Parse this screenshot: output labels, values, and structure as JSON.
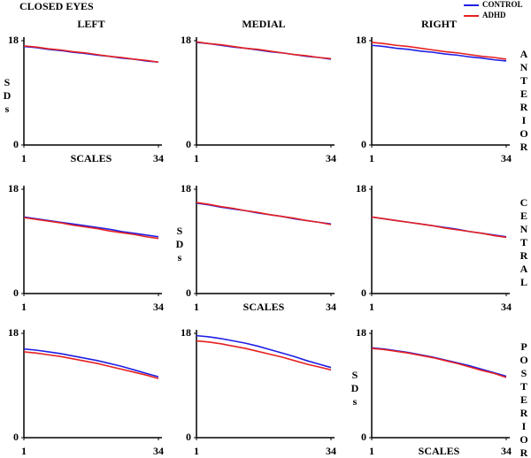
{
  "title": "CLOSED EYES",
  "chart_data": [
    {
      "type": "line",
      "title": "LEFT",
      "xlabel": "SCALES",
      "ylabel": "SDs",
      "x": [
        1,
        4,
        7,
        10,
        13,
        16,
        19,
        22,
        25,
        28,
        31,
        34
      ],
      "xlim": [
        1,
        34
      ],
      "ylim": [
        0,
        18
      ],
      "xticks": [
        1,
        34
      ],
      "yticks": [
        0,
        18
      ],
      "series": [
        {
          "name": "CONTROL",
          "color": "#1f1fe6",
          "values": [
            17.0,
            16.8,
            16.5,
            16.3,
            16.0,
            15.8,
            15.5,
            15.3,
            15.0,
            14.8,
            14.5,
            14.3
          ]
        },
        {
          "name": "ADHD",
          "color": "#e62020",
          "values": [
            17.1,
            16.9,
            16.6,
            16.4,
            16.1,
            15.9,
            15.6,
            15.3,
            15.1,
            14.8,
            14.6,
            14.3
          ]
        }
      ]
    },
    {
      "type": "line",
      "title": "MEDIAL",
      "x": [
        1,
        4,
        7,
        10,
        13,
        16,
        19,
        22,
        25,
        28,
        31,
        34
      ],
      "xlim": [
        1,
        34
      ],
      "ylim": [
        0,
        18
      ],
      "xticks": [
        1,
        34
      ],
      "yticks": [
        0,
        18
      ],
      "series": [
        {
          "color": "#1f1fe6",
          "values": [
            17.7,
            17.5,
            17.2,
            16.9,
            16.7,
            16.4,
            16.1,
            15.9,
            15.6,
            15.3,
            15.1,
            14.8
          ]
        },
        {
          "color": "#e62020",
          "values": [
            17.8,
            17.5,
            17.3,
            17.0,
            16.7,
            16.5,
            16.2,
            15.9,
            15.6,
            15.4,
            15.1,
            14.9
          ]
        }
      ]
    },
    {
      "type": "line",
      "title": "RIGHT",
      "row_label": "ANTERIOR",
      "x": [
        1,
        4,
        7,
        10,
        13,
        16,
        19,
        22,
        25,
        28,
        31,
        34
      ],
      "xlim": [
        1,
        34
      ],
      "ylim": [
        0,
        18
      ],
      "xticks": [
        1,
        34
      ],
      "yticks": [
        0,
        18
      ],
      "series": [
        {
          "color": "#1f1fe6",
          "values": [
            17.2,
            17.0,
            16.7,
            16.5,
            16.2,
            16.0,
            15.7,
            15.5,
            15.2,
            15.0,
            14.7,
            14.5
          ]
        },
        {
          "color": "#e62020",
          "values": [
            17.7,
            17.5,
            17.2,
            17.0,
            16.7,
            16.4,
            16.1,
            15.9,
            15.6,
            15.3,
            15.1,
            14.8
          ]
        }
      ]
    },
    {
      "type": "line",
      "x": [
        1,
        4,
        7,
        10,
        13,
        16,
        19,
        22,
        25,
        28,
        31,
        34
      ],
      "xlim": [
        1,
        34
      ],
      "ylim": [
        0,
        18
      ],
      "xticks": [
        1,
        34
      ],
      "yticks": [
        0,
        18
      ],
      "series": [
        {
          "color": "#1f1fe6",
          "values": [
            13.2,
            12.9,
            12.6,
            12.3,
            12.0,
            11.7,
            11.4,
            11.1,
            10.7,
            10.4,
            10.1,
            9.8
          ]
        },
        {
          "color": "#e62020",
          "values": [
            13.1,
            12.8,
            12.5,
            12.2,
            11.8,
            11.5,
            11.2,
            10.8,
            10.5,
            10.2,
            9.8,
            9.5
          ]
        }
      ]
    },
    {
      "type": "line",
      "xlabel": "SCALES",
      "ylabel": "SDs",
      "x": [
        1,
        4,
        7,
        10,
        13,
        16,
        19,
        22,
        25,
        28,
        31,
        34
      ],
      "xlim": [
        1,
        34
      ],
      "ylim": [
        0,
        18
      ],
      "xticks": [
        1,
        34
      ],
      "yticks": [
        0,
        18
      ],
      "series": [
        {
          "color": "#1f1fe6",
          "values": [
            15.6,
            15.3,
            14.9,
            14.6,
            14.3,
            13.9,
            13.6,
            13.3,
            12.9,
            12.6,
            12.3,
            12.0
          ]
        },
        {
          "color": "#e62020",
          "values": [
            15.7,
            15.4,
            15.0,
            14.7,
            14.3,
            14.0,
            13.6,
            13.3,
            13.0,
            12.6,
            12.3,
            11.9
          ]
        }
      ]
    },
    {
      "type": "line",
      "row_label": "CENTRAL",
      "x": [
        1,
        4,
        7,
        10,
        13,
        16,
        19,
        22,
        25,
        28,
        31,
        34
      ],
      "xlim": [
        1,
        34
      ],
      "ylim": [
        0,
        18
      ],
      "xticks": [
        1,
        34
      ],
      "yticks": [
        0,
        18
      ],
      "series": [
        {
          "color": "#1f1fe6",
          "values": [
            13.2,
            12.9,
            12.6,
            12.3,
            12.0,
            11.7,
            11.4,
            11.1,
            10.7,
            10.4,
            10.1,
            9.8
          ]
        },
        {
          "color": "#e62020",
          "values": [
            13.2,
            12.9,
            12.6,
            12.3,
            12.0,
            11.7,
            11.3,
            11.0,
            10.7,
            10.4,
            10.0,
            9.7
          ]
        }
      ]
    },
    {
      "type": "line",
      "x": [
        1,
        4,
        7,
        10,
        13,
        16,
        19,
        22,
        25,
        28,
        31,
        34
      ],
      "xlim": [
        1,
        34
      ],
      "ylim": [
        0,
        18
      ],
      "xticks": [
        1,
        34
      ],
      "yticks": [
        0,
        18
      ],
      "series": [
        {
          "color": "#1f1fe6",
          "values": [
            15.3,
            15.1,
            14.8,
            14.5,
            14.1,
            13.7,
            13.3,
            12.8,
            12.3,
            11.7,
            11.1,
            10.5
          ]
        },
        {
          "color": "#e62020",
          "values": [
            14.8,
            14.6,
            14.3,
            14.0,
            13.6,
            13.2,
            12.8,
            12.3,
            11.8,
            11.3,
            10.8,
            10.2
          ]
        }
      ]
    },
    {
      "type": "line",
      "x": [
        1,
        4,
        7,
        10,
        13,
        16,
        19,
        22,
        25,
        28,
        31,
        34
      ],
      "xlim": [
        1,
        34
      ],
      "ylim": [
        0,
        18
      ],
      "xticks": [
        1,
        34
      ],
      "yticks": [
        0,
        18
      ],
      "series": [
        {
          "color": "#1f1fe6",
          "values": [
            17.6,
            17.4,
            17.1,
            16.7,
            16.3,
            15.8,
            15.2,
            14.6,
            14.0,
            13.3,
            12.7,
            12.1
          ]
        },
        {
          "color": "#e62020",
          "values": [
            16.7,
            16.5,
            16.2,
            15.8,
            15.4,
            14.9,
            14.4,
            13.9,
            13.3,
            12.7,
            12.2,
            11.7
          ]
        }
      ]
    },
    {
      "type": "line",
      "xlabel": "SCALES",
      "ylabel": "SDs",
      "row_label": "POSTERIOR",
      "x": [
        1,
        4,
        7,
        10,
        13,
        16,
        19,
        22,
        25,
        28,
        31,
        34
      ],
      "xlim": [
        1,
        34
      ],
      "ylim": [
        0,
        18
      ],
      "xticks": [
        1,
        34
      ],
      "yticks": [
        0,
        18
      ],
      "series": [
        {
          "color": "#1f1fe6",
          "values": [
            15.5,
            15.3,
            15.0,
            14.7,
            14.3,
            13.9,
            13.4,
            12.9,
            12.4,
            11.8,
            11.2,
            10.6
          ]
        },
        {
          "color": "#e62020",
          "values": [
            15.4,
            15.2,
            14.9,
            14.6,
            14.2,
            13.8,
            13.3,
            12.8,
            12.2,
            11.6,
            11.1,
            10.4
          ]
        }
      ]
    }
  ]
}
